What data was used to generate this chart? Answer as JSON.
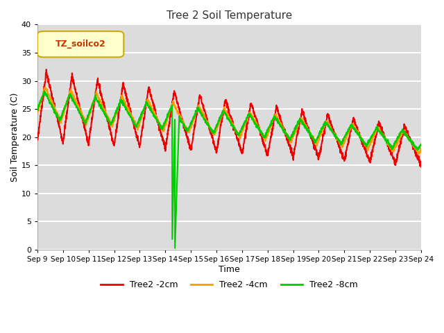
{
  "title": "Tree 2 Soil Temperature",
  "xlabel": "Time",
  "ylabel": "Soil Temperature (C)",
  "ylim": [
    0,
    40
  ],
  "xlim": [
    0,
    15
  ],
  "bg_color": "#dcdcdc",
  "plot_bg_color": "#dcdcdc",
  "legend_label": "TZ_soilco2",
  "legend_box_face": "#ffffcc",
  "legend_box_edge": "#ccaa00",
  "legend_text_color": "#cc3300",
  "series_labels": [
    "Tree2 -2cm",
    "Tree2 -4cm",
    "Tree2 -8cm"
  ],
  "series_colors": [
    "#ee0000",
    "#ff9900",
    "#00cc00"
  ],
  "xtick_labels": [
    "Sep 9",
    "Sep 10",
    "Sep 11",
    "Sep 12",
    "Sep 13",
    "Sep 14",
    "Sep 15",
    "Sep 16",
    "Sep 17",
    "Sep 18",
    "Sep 19",
    "Sep 20",
    "Sep 21",
    "Sep 22",
    "Sep 23",
    "Sep 24"
  ],
  "xtick_positions": [
    0,
    1,
    2,
    3,
    4,
    5,
    6,
    7,
    8,
    9,
    10,
    11,
    12,
    13,
    14,
    15
  ],
  "ytick_positions": [
    0,
    5,
    10,
    15,
    20,
    25,
    30,
    35,
    40
  ],
  "grid_color": "#ffffff",
  "linewidth": 1.5
}
